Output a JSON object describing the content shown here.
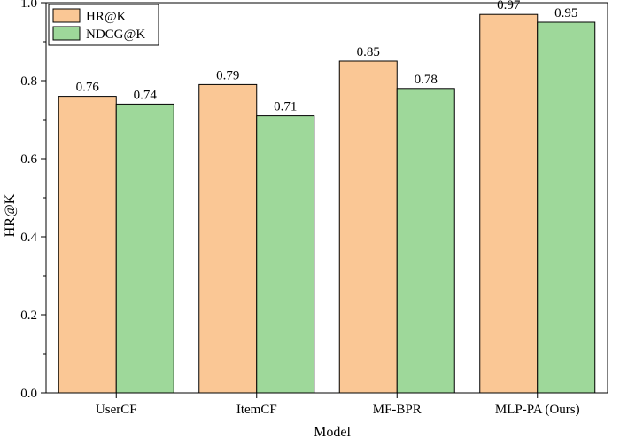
{
  "chart_data": {
    "type": "bar",
    "xlabel": "Model",
    "ylabel": "HR@K",
    "ylim": [
      0,
      1.0
    ],
    "yticks": [
      "0.0",
      "0.2",
      "0.4",
      "0.6",
      "0.8",
      "1.0"
    ],
    "grid": false,
    "legend_position": "top-left",
    "categories": [
      "UserCF",
      "ItemCF",
      "MF-BPR",
      "MLP-PA (Ours)"
    ],
    "series": [
      {
        "name": "HR@K",
        "color": "#FAC795",
        "values": [
          0.76,
          0.79,
          0.85,
          0.97
        ],
        "labels": [
          "0.76",
          "0.79",
          "0.85",
          "0.97"
        ]
      },
      {
        "name": "NDCG@K",
        "color": "#9ED89A",
        "values": [
          0.74,
          0.71,
          0.78,
          0.95
        ],
        "labels": [
          "0.74",
          "0.71",
          "0.78",
          "0.95"
        ]
      }
    ]
  }
}
